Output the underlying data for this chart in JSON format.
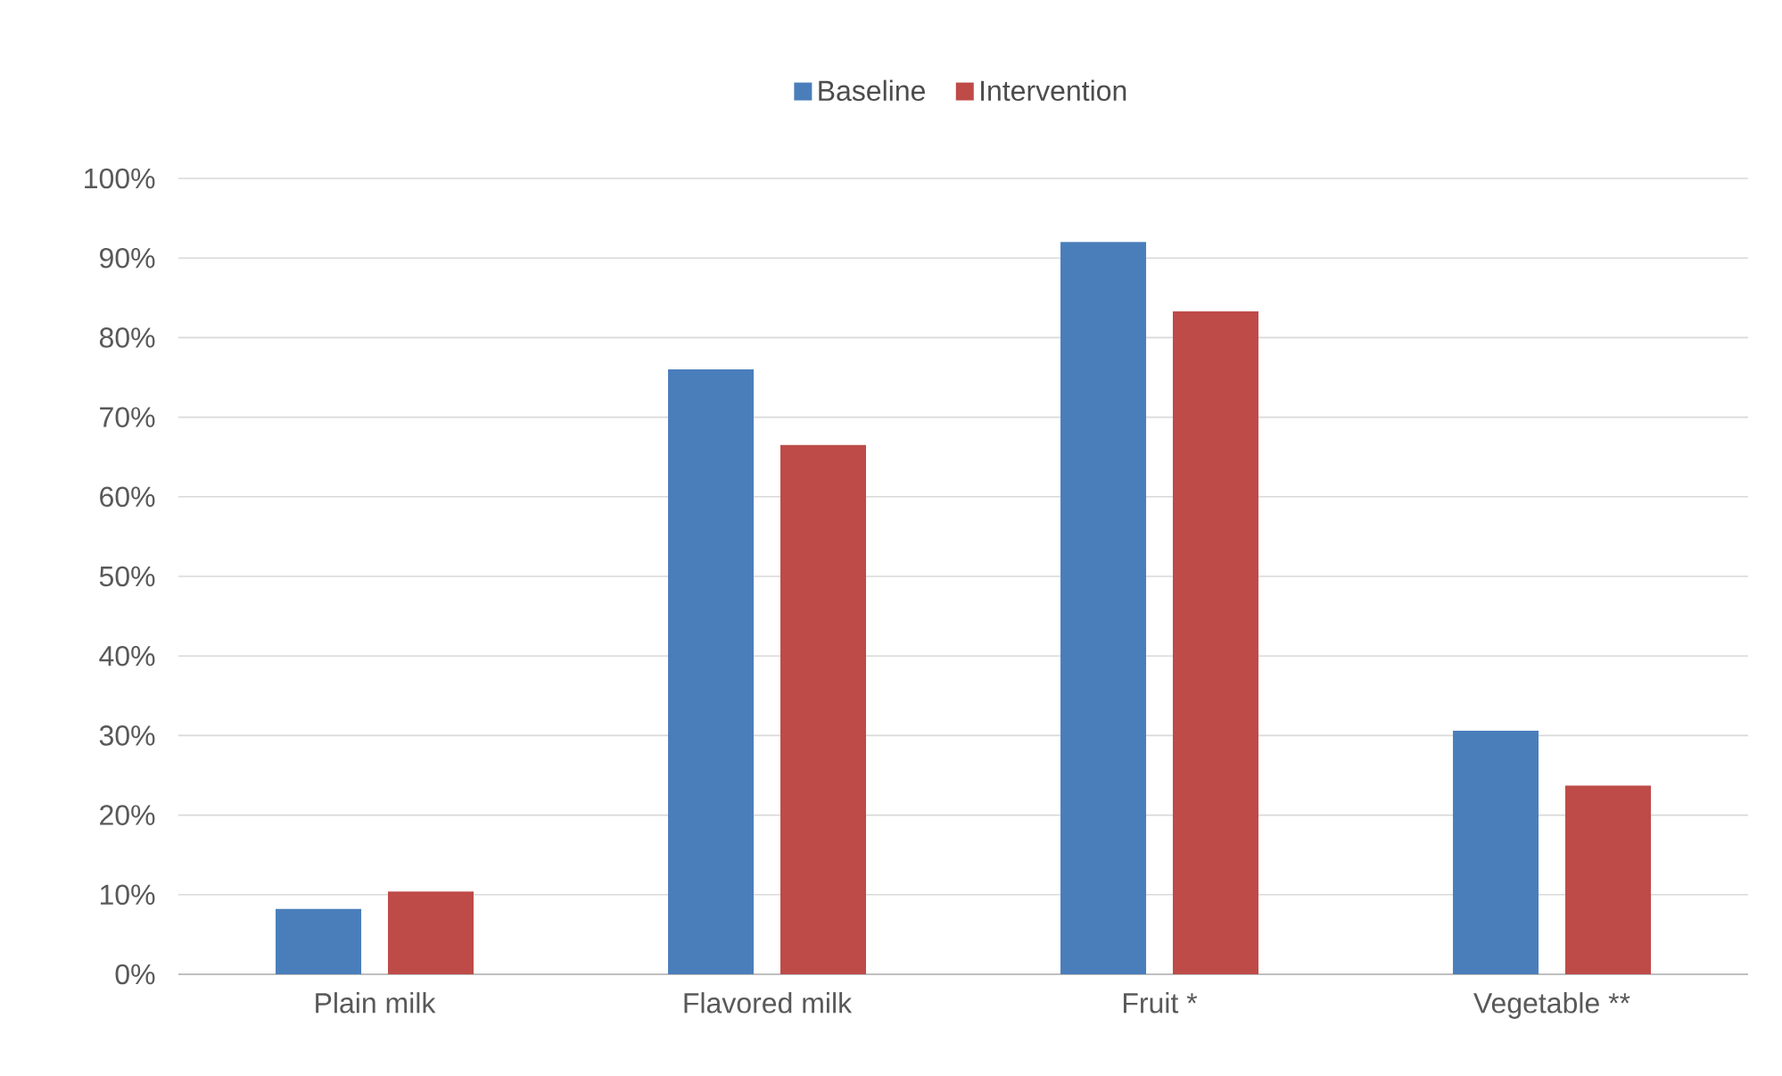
{
  "chart_data": {
    "type": "bar",
    "categories": [
      "Plain milk",
      "Flavored milk",
      "Fruit *",
      "Vegetable **"
    ],
    "series": [
      {
        "name": "Baseline",
        "color": "#4a7ebb",
        "values": [
          8.2,
          76.0,
          92.0,
          30.6
        ]
      },
      {
        "name": "Intervention",
        "color": "#be4b48",
        "values": [
          10.4,
          66.5,
          83.3,
          23.7
        ]
      }
    ],
    "ylim": [
      0,
      100
    ],
    "yticks": [
      {
        "value": 0,
        "label": "0%"
      },
      {
        "value": 10,
        "label": "10%"
      },
      {
        "value": 20,
        "label": "20%"
      },
      {
        "value": 30,
        "label": "30%"
      },
      {
        "value": 40,
        "label": "40%"
      },
      {
        "value": 50,
        "label": "50%"
      },
      {
        "value": 60,
        "label": "60%"
      },
      {
        "value": 70,
        "label": "70%"
      },
      {
        "value": 80,
        "label": "80%"
      },
      {
        "value": 90,
        "label": "90%"
      },
      {
        "value": 100,
        "label": "100%"
      }
    ],
    "grid": "y",
    "legend": "top"
  }
}
